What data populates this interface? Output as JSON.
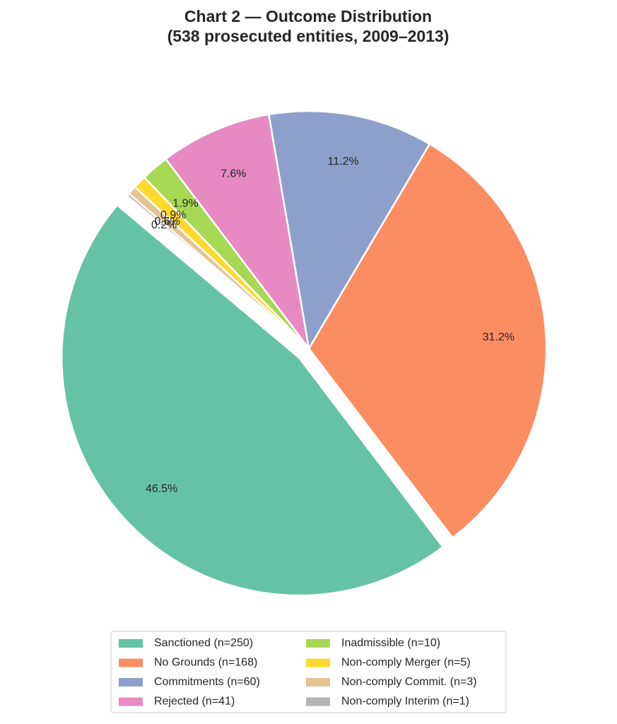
{
  "chart_data": {
    "type": "pie",
    "title": [
      "Chart 2 — Outcome Distribution",
      "(538 prosecuted entities, 2009–2013)"
    ],
    "categories": [
      "Sanctioned (n=250)",
      "No Grounds (n=168)",
      "Commitments (n=60)",
      "Rejected (n=41)",
      "Inadmissible (n=10)",
      "Non-comply Merger (n=5)",
      "Non-comply Commit. (n=3)",
      "Non-comply Interim (n=1)"
    ],
    "values": [
      46.5,
      31.2,
      11.2,
      7.6,
      1.9,
      0.9,
      0.6,
      0.2
    ],
    "value_labels": [
      "46.5%",
      "31.2%",
      "11.2%",
      "7.6%",
      "1.9%",
      "0.9%",
      "0.6%",
      "0.2%"
    ],
    "colors": [
      "#66c2a5",
      "#fc8d62",
      "#8da0cb",
      "#e78ac3",
      "#a6d854",
      "#ffd92f",
      "#e5c494",
      "#b3b3b3"
    ],
    "legend": "lower center"
  }
}
